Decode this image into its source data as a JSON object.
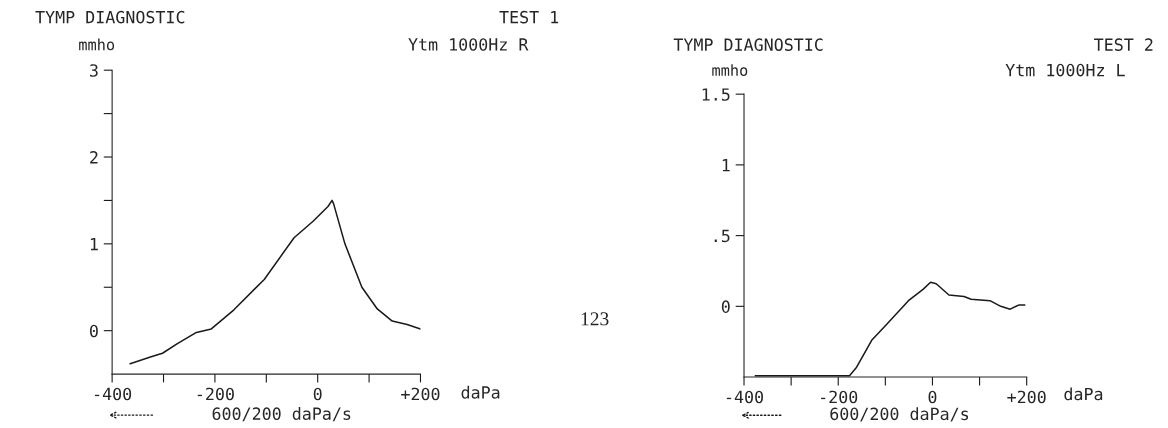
{
  "chart_data": [
    {
      "type": "line",
      "title": "TYMP DIAGNOSTIC",
      "ylabel": "mmho",
      "xlabel": "daPa",
      "annotations": [
        "TEST 1",
        "Ytm 1000Hz R",
        "600/200 daPa/s"
      ],
      "x": [
        -365,
        -324,
        -302,
        -273,
        -236,
        -207,
        -163,
        -104,
        -46,
        -9,
        20,
        28,
        31,
        53,
        86,
        116,
        145,
        174,
        200
      ],
      "series": [
        {
          "color": "#1a1a1a",
          "values": [
            -0.38,
            -0.3,
            -0.26,
            -0.15,
            -0.02,
            0.02,
            0.24,
            0.59,
            1.07,
            1.26,
            1.43,
            1.5,
            1.46,
            1.0,
            0.5,
            0.25,
            0.11,
            0.07,
            0.02
          ]
        }
      ],
      "xlim": [
        -400,
        200
      ],
      "xticks": [
        -400,
        {
          "value": -300,
          "label": null
        },
        -200,
        {
          "value": -100,
          "label": null
        },
        0,
        {
          "value": 100,
          "label": null
        },
        {
          "value": 200,
          "label": "+200"
        }
      ],
      "ylim": [
        -0.5,
        3
      ],
      "yticks": [
        3,
        {
          "value": 2.5,
          "label": null
        },
        2,
        {
          "value": 1.5,
          "label": null
        },
        1,
        {
          "value": 0.5,
          "label": null
        },
        0
      ],
      "grid": false,
      "marker": "none",
      "line_style": "solid"
    },
    {
      "type": "line",
      "title": "TYMP DIAGNOSTIC",
      "ylabel": "mmho",
      "xlabel": "daPa",
      "annotations": [
        "TEST 2",
        "Ytm 1000Hz L",
        "600/200 daPa/s",
        "123"
      ],
      "x": [
        -376,
        -176,
        -161,
        -129,
        -98,
        -51,
        -20,
        -4,
        8,
        35,
        67,
        82,
        122,
        145,
        165,
        184,
        196
      ],
      "series": [
        {
          "color": "#1a1a1a",
          "values": [
            -0.49,
            -0.49,
            -0.43,
            -0.24,
            -0.13,
            0.04,
            0.12,
            0.17,
            0.16,
            0.08,
            0.07,
            0.05,
            0.04,
            0.0,
            -0.02,
            0.01,
            0.01
          ]
        }
      ],
      "xlim": [
        -400,
        200
      ],
      "xticks": [
        -400,
        {
          "value": -300,
          "label": null
        },
        -200,
        {
          "value": -100,
          "label": null
        },
        0,
        {
          "value": 100,
          "label": null
        },
        {
          "value": 200,
          "label": "+200"
        }
      ],
      "ylim": [
        -0.5,
        1.5
      ],
      "yticks": [
        1.5,
        1,
        {
          "value": 0.5,
          "label": ".5"
        },
        0
      ],
      "grid": false,
      "marker": "none",
      "line_style": "solid"
    }
  ]
}
